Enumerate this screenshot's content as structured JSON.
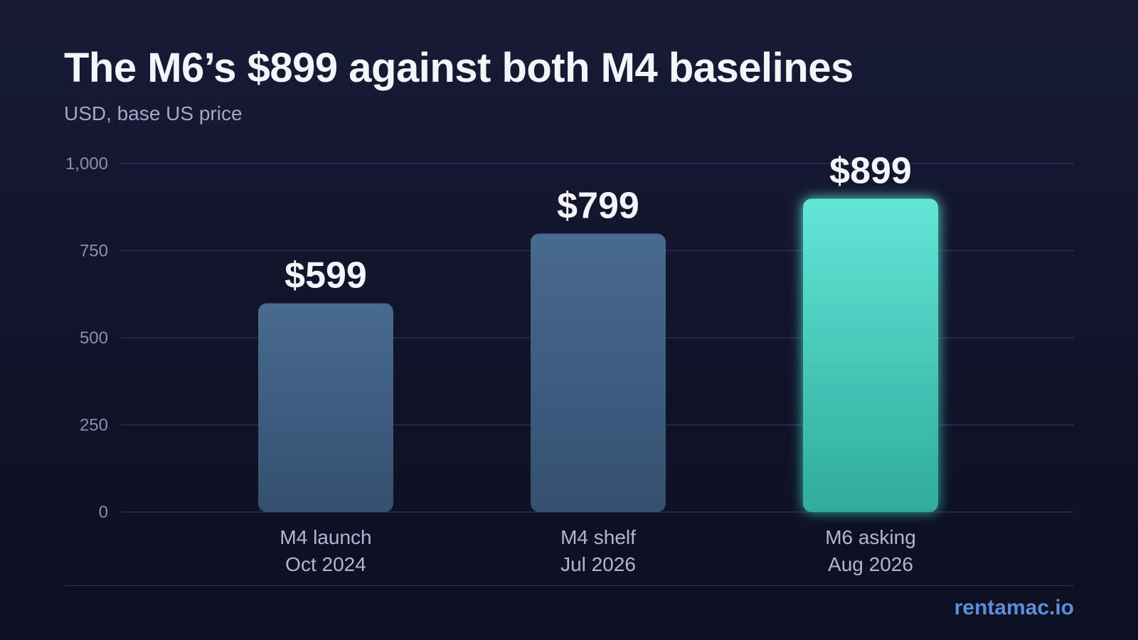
{
  "header": {
    "title": "The M6’s $899 against both M4 baselines",
    "subtitle": "USD, base US price"
  },
  "chart_data": {
    "type": "bar",
    "categories": [
      {
        "line1": "M4 launch",
        "line2": "Oct 2024"
      },
      {
        "line1": "M4 shelf",
        "line2": "Jul 2026"
      },
      {
        "line1": "M6 asking",
        "line2": "Aug 2026"
      }
    ],
    "values": [
      599,
      799,
      899
    ],
    "value_labels": [
      "$599",
      "$799",
      "$899"
    ],
    "highlight_index": 2,
    "ylim": [
      0,
      1000
    ],
    "yticks": [
      0,
      250,
      500,
      750,
      1000
    ],
    "ytick_labels": [
      "0",
      "250",
      "500",
      "750",
      "1,000"
    ],
    "grid": true,
    "colors": {
      "bar_top": "#486a8f",
      "bar_bottom": "#34506f",
      "highlight_top": "#62e6d6",
      "highlight_bottom": "#2fab9d",
      "grid": "#2b2f52",
      "tick_text": "#8b8eae",
      "category_text": "#b3b6d3",
      "value_text": "#f4f5fb"
    }
  },
  "footer": {
    "brand": "rentamac.io"
  }
}
